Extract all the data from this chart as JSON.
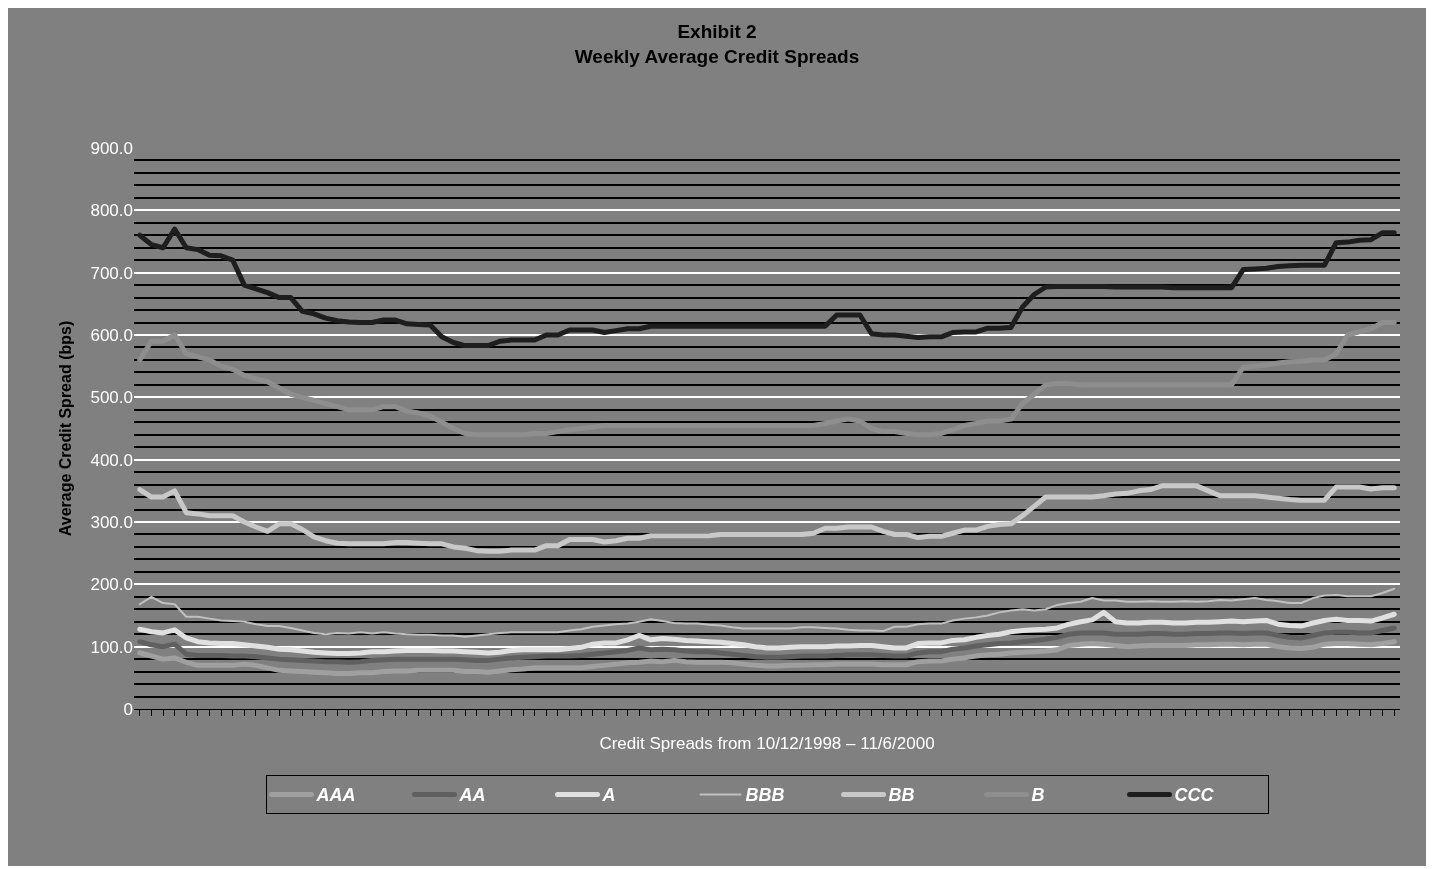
{
  "chart_data": {
    "type": "line",
    "title": "Exhibit 2\nWeekly Average Credit Spreads",
    "xlabel": "Credit Spreads from 10/12/1998 – 11/6/2000",
    "ylabel": "Average Credit Spread (bps)",
    "categories": [
      null,
      null,
      null,
      null,
      null,
      null,
      null,
      null,
      null,
      null,
      null,
      null,
      null,
      null,
      null,
      null,
      null,
      null,
      null,
      null,
      null,
      null,
      null,
      null,
      null,
      null,
      null,
      null,
      null,
      null,
      null,
      null,
      null,
      null,
      null,
      null,
      null,
      null,
      null,
      null,
      null,
      null,
      null,
      null,
      null,
      null,
      null,
      null,
      null,
      null,
      null,
      null,
      null,
      null,
      null,
      null,
      null,
      null,
      null,
      null,
      null,
      null,
      null,
      null,
      null,
      null,
      null,
      null,
      null,
      null,
      null,
      null,
      null,
      null,
      null,
      null,
      null,
      null,
      null,
      null,
      null,
      null,
      null,
      null,
      null,
      null,
      null,
      null,
      null,
      null,
      null,
      null,
      null,
      null,
      null,
      null,
      null,
      null,
      null,
      null,
      null,
      null,
      null,
      null,
      null,
      null,
      null,
      null,
      null
    ],
    "series": [
      {
        "name": "AAA",
        "color": "#a0a0a0",
        "values": [
          90,
          85,
          80,
          82,
          75,
          70,
          70,
          70,
          70,
          72,
          70,
          66,
          62,
          61,
          60,
          59,
          58,
          57,
          57,
          58,
          58,
          60,
          61,
          61,
          62,
          62,
          62,
          62,
          60,
          60,
          59,
          61,
          63,
          64,
          66,
          66,
          66,
          66,
          66,
          68,
          70,
          72,
          74,
          75,
          77,
          76,
          78,
          76,
          75,
          75,
          75,
          74,
          72,
          70,
          69,
          69,
          70,
          70,
          71,
          71,
          72,
          72,
          72,
          72,
          71,
          71,
          71,
          76,
          77,
          77,
          80,
          82,
          85,
          87,
          88,
          90,
          91,
          92,
          93,
          95,
          102,
          104,
          105,
          104,
          102,
          100,
          101,
          102,
          102,
          102,
          102,
          103,
          103,
          104,
          104,
          103,
          104,
          104,
          100,
          98,
          97,
          99,
          104,
          105,
          105,
          104,
          103,
          105,
          108
        ]
      },
      {
        "name": "AA",
        "color": "#606060",
        "values": [
          108,
          103,
          100,
          104,
          88,
          86,
          86,
          86,
          85,
          85,
          84,
          82,
          80,
          79,
          78,
          77,
          76,
          76,
          75,
          76,
          78,
          79,
          80,
          80,
          80,
          80,
          80,
          80,
          79,
          78,
          78,
          80,
          82,
          83,
          84,
          85,
          85,
          85,
          86,
          88,
          90,
          92,
          94,
          98,
          95,
          96,
          95,
          93,
          92,
          92,
          90,
          88,
          86,
          84,
          83,
          83,
          84,
          85,
          85,
          85,
          86,
          87,
          87,
          87,
          86,
          85,
          85,
          90,
          92,
          92,
          96,
          98,
          101,
          103,
          105,
          106,
          108,
          110,
          112,
          115,
          120,
          122,
          122,
          122,
          120,
          120,
          120,
          121,
          121,
          120,
          120,
          121,
          121,
          122,
          122,
          121,
          122,
          122,
          118,
          115,
          114,
          118,
          122,
          123,
          123,
          122,
          122,
          126,
          130
        ]
      },
      {
        "name": "A",
        "color": "#e0e0e0",
        "values": [
          128,
          124,
          122,
          127,
          114,
          108,
          106,
          105,
          105,
          103,
          101,
          99,
          96,
          95,
          93,
          91,
          90,
          89,
          89,
          90,
          92,
          92,
          93,
          94,
          94,
          94,
          93,
          93,
          92,
          91,
          90,
          91,
          94,
          95,
          95,
          95,
          95,
          97,
          99,
          104,
          106,
          106,
          111,
          118,
          111,
          113,
          112,
          110,
          109,
          108,
          107,
          105,
          103,
          100,
          98,
          98,
          99,
          100,
          100,
          100,
          101,
          101,
          102,
          102,
          100,
          98,
          98,
          105,
          106,
          106,
          110,
          111,
          115,
          118,
          120,
          124,
          126,
          127,
          128,
          130,
          136,
          140,
          143,
          155,
          140,
          138,
          138,
          139,
          139,
          138,
          138,
          139,
          139,
          140,
          141,
          140,
          141,
          142,
          136,
          134,
          133,
          138,
          142,
          144,
          142,
          142,
          141,
          146,
          152
        ]
      },
      {
        "name": "BBB",
        "color": "#c0c0c0",
        "values": [
          168,
          180,
          170,
          168,
          148,
          148,
          145,
          142,
          141,
          140,
          136,
          133,
          133,
          130,
          126,
          122,
          120,
          122,
          121,
          123,
          121,
          123,
          121,
          120,
          119,
          119,
          118,
          118,
          116,
          118,
          120,
          122,
          123,
          123,
          123,
          123,
          123,
          126,
          128,
          132,
          134,
          136,
          137,
          140,
          144,
          141,
          138,
          137,
          137,
          135,
          134,
          131,
          129,
          129,
          129,
          129,
          129,
          131,
          131,
          130,
          129,
          127,
          126,
          126,
          125,
          132,
          132,
          136,
          137,
          137,
          142,
          145,
          147,
          150,
          155,
          158,
          160,
          158,
          160,
          167,
          170,
          172,
          178,
          174,
          174,
          172,
          172,
          173,
          172,
          172,
          173,
          172,
          173,
          175,
          174,
          176,
          178,
          175,
          173,
          170,
          170,
          178,
          182,
          183,
          181,
          181,
          181,
          186,
          193
        ]
      },
      {
        "name": "BB",
        "color": "#c8c8c8",
        "values": [
          352,
          340,
          340,
          350,
          315,
          313,
          310,
          310,
          310,
          300,
          292,
          285,
          297,
          297,
          288,
          276,
          270,
          266,
          265,
          265,
          265,
          265,
          267,
          267,
          266,
          265,
          265,
          260,
          258,
          254,
          253,
          253,
          255,
          255,
          255,
          262,
          262,
          272,
          272,
          272,
          268,
          270,
          274,
          274,
          278,
          278,
          278,
          278,
          278,
          278,
          280,
          280,
          280,
          280,
          280,
          280,
          280,
          280,
          282,
          290,
          290,
          292,
          292,
          292,
          285,
          280,
          280,
          275,
          277,
          277,
          282,
          287,
          287,
          293,
          296,
          297,
          310,
          325,
          340,
          340,
          340,
          340,
          340,
          342,
          345,
          346,
          350,
          352,
          358,
          358,
          358,
          358,
          350,
          342,
          342,
          342,
          342,
          340,
          338,
          336,
          335,
          335,
          335,
          356,
          356,
          356,
          353,
          355,
          355
        ]
      },
      {
        "name": "B",
        "color": "#8e8e8e",
        "values": [
          560,
          590,
          590,
          600,
          570,
          565,
          560,
          550,
          545,
          535,
          530,
          525,
          515,
          505,
          500,
          495,
          490,
          485,
          480,
          480,
          480,
          485,
          485,
          478,
          475,
          470,
          460,
          450,
          442,
          440,
          440,
          440,
          440,
          440,
          442,
          442,
          445,
          448,
          450,
          452,
          455,
          455,
          455,
          455,
          455,
          455,
          455,
          455,
          455,
          455,
          455,
          455,
          455,
          455,
          455,
          455,
          455,
          455,
          455,
          458,
          462,
          465,
          462,
          450,
          445,
          445,
          442,
          440,
          440,
          442,
          448,
          455,
          458,
          462,
          462,
          465,
          490,
          505,
          520,
          522,
          522,
          520,
          520,
          520,
          520,
          520,
          520,
          520,
          520,
          520,
          520,
          520,
          520,
          520,
          520,
          548,
          550,
          552,
          555,
          557,
          558,
          560,
          560,
          570,
          600,
          605,
          610,
          620,
          620
        ]
      },
      {
        "name": "CCC",
        "color": "#1e1e1e",
        "values": [
          760,
          745,
          740,
          770,
          740,
          737,
          728,
          727,
          720,
          680,
          674,
          668,
          660,
          660,
          638,
          634,
          627,
          623,
          621,
          620,
          620,
          624,
          624,
          618,
          617,
          616,
          597,
          588,
          583,
          583,
          583,
          590,
          592,
          592,
          592,
          600,
          600,
          608,
          608,
          608,
          604,
          607,
          610,
          610,
          614,
          614,
          614,
          614,
          614,
          614,
          614,
          614,
          614,
          614,
          614,
          614,
          614,
          614,
          614,
          614,
          632,
          632,
          632,
          602,
          600,
          600,
          598,
          596,
          597,
          597,
          604,
          605,
          605,
          611,
          611,
          612,
          645,
          665,
          677,
          678,
          678,
          678,
          678,
          678,
          677,
          677,
          677,
          677,
          677,
          676,
          676,
          676,
          676,
          676,
          676,
          705,
          706,
          707,
          710,
          711,
          712,
          712,
          712,
          748,
          749,
          752,
          753,
          764,
          764
        ]
      }
    ],
    "ylim": [
      0,
      900
    ],
    "yticks": [
      0,
      {
        "value": 20,
        "label": null
      },
      {
        "value": 40,
        "label": null
      },
      {
        "value": 60,
        "label": null
      },
      {
        "value": 80,
        "label": null
      },
      {
        "value": 100,
        "label": "100.0"
      },
      {
        "value": 120,
        "label": null
      },
      {
        "value": 140,
        "label": null
      },
      {
        "value": 160,
        "label": null
      },
      {
        "value": 180,
        "label": null
      },
      {
        "value": 200,
        "label": "200.0"
      },
      {
        "value": 220,
        "label": null
      },
      {
        "value": 240,
        "label": null
      },
      {
        "value": 260,
        "label": null
      },
      {
        "value": 280,
        "label": null
      },
      {
        "value": 300,
        "label": "300.0"
      },
      {
        "value": 320,
        "label": null
      },
      {
        "value": 340,
        "label": null
      },
      {
        "value": 360,
        "label": null
      },
      {
        "value": 380,
        "label": null
      },
      {
        "value": 400,
        "label": "400.0"
      },
      {
        "value": 420,
        "label": null
      },
      {
        "value": 440,
        "label": null
      },
      {
        "value": 460,
        "label": null
      },
      {
        "value": 480,
        "label": null
      },
      {
        "value": 500,
        "label": "500.0"
      },
      {
        "value": 520,
        "label": null
      },
      {
        "value": 540,
        "label": null
      },
      {
        "value": 560,
        "label": null
      },
      {
        "value": 580,
        "label": null
      },
      {
        "value": 600,
        "label": "600.0"
      },
      {
        "value": 620,
        "label": null
      },
      {
        "value": 640,
        "label": null
      },
      {
        "value": 660,
        "label": null
      },
      {
        "value": 680,
        "label": null
      },
      {
        "value": 700,
        "label": "700.0"
      },
      {
        "value": 720,
        "label": null
      },
      {
        "value": 740,
        "label": null
      },
      {
        "value": 760,
        "label": null
      },
      {
        "value": 780,
        "label": null
      },
      {
        "value": 800,
        "label": "800.0"
      },
      {
        "value": 820,
        "label": null
      },
      {
        "value": 840,
        "label": null
      },
      {
        "value": 860,
        "label": null
      },
      {
        "value": 880,
        "label": null
      },
      {
        "value": 900,
        "label": "900.0"
      }
    ],
    "grid": "y",
    "legend": "bottom",
    "tick_labels": "y",
    "marker": "none",
    "line_style": "solid"
  }
}
